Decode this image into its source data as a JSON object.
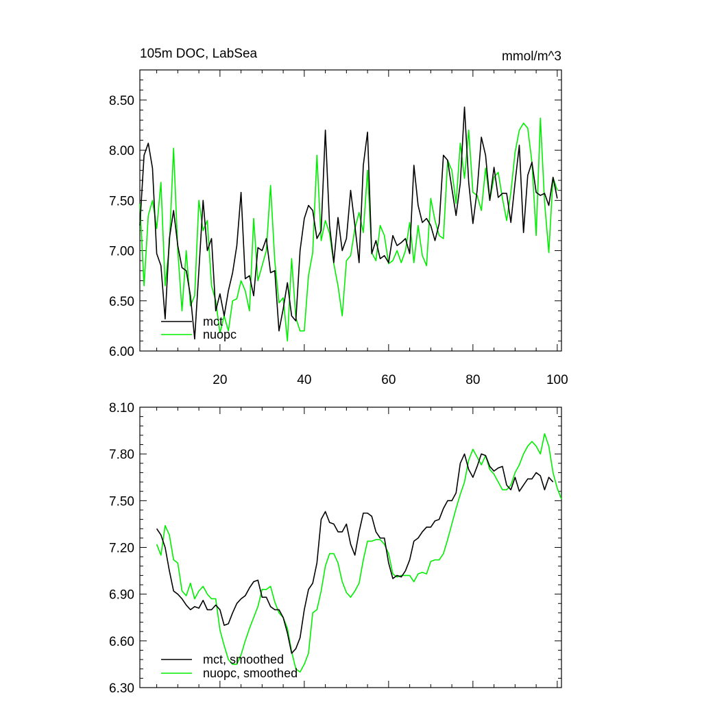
{
  "chart_data": [
    {
      "type": "line",
      "title": "105m DOC, LabSea",
      "units": "mmol/m^3",
      "xlim": [
        1,
        101
      ],
      "ylim": [
        6.0,
        8.8
      ],
      "xticks": [
        20,
        40,
        60,
        80,
        100
      ],
      "xtick_labels": [
        "20",
        "40",
        "60",
        "80",
        "100"
      ],
      "yticks": [
        6.0,
        6.5,
        7.0,
        7.5,
        8.0,
        8.5
      ],
      "ytick_labels": [
        "6.00",
        "6.50",
        "7.00",
        "7.50",
        "8.00",
        "8.50"
      ],
      "colors": {
        "mct": "#000000",
        "nuopc": "#00ee00"
      },
      "series": [
        {
          "name": "mct",
          "x_start": 1,
          "values": [
            7.25,
            7.95,
            8.07,
            7.82,
            6.97,
            6.85,
            6.32,
            7.12,
            7.4,
            7.05,
            6.83,
            6.8,
            6.55,
            6.12,
            6.8,
            7.5,
            7.0,
            7.12,
            6.4,
            6.57,
            6.35,
            6.6,
            6.78,
            7.05,
            7.58,
            6.72,
            6.75,
            6.55,
            7.03,
            7.0,
            7.12,
            6.78,
            6.8,
            6.2,
            6.42,
            6.68,
            6.35,
            6.3,
            7.0,
            7.32,
            7.45,
            7.4,
            7.12,
            7.2,
            8.2,
            7.25,
            6.88,
            7.33,
            7.0,
            7.12,
            7.6,
            7.25,
            6.88,
            7.85,
            8.18,
            6.97,
            7.1,
            6.92,
            6.95,
            6.88,
            7.15,
            7.05,
            7.08,
            7.12,
            6.97,
            7.85,
            7.45,
            7.28,
            7.32,
            7.25,
            7.1,
            7.27,
            7.95,
            7.9,
            7.62,
            7.35,
            7.67,
            8.43,
            7.68,
            7.27,
            7.6,
            8.13,
            7.95,
            7.5,
            7.83,
            7.53,
            7.57,
            7.57,
            7.28,
            7.68,
            8.05,
            7.18,
            7.75,
            7.88,
            7.58,
            7.55,
            7.57,
            7.45,
            7.73,
            7.52
          ]
        },
        {
          "name": "nuopc",
          "x_start": 1,
          "values": [
            7.47,
            6.65,
            7.35,
            7.5,
            7.22,
            7.68,
            6.65,
            7.05,
            8.02,
            7.0,
            6.4,
            7.0,
            6.45,
            6.55,
            7.5,
            7.2,
            7.3,
            6.65,
            6.5,
            6.18,
            6.35,
            6.2,
            6.5,
            6.52,
            6.7,
            6.6,
            6.4,
            7.32,
            6.7,
            6.85,
            7.0,
            7.65,
            6.9,
            6.48,
            6.53,
            6.1,
            6.92,
            6.33,
            6.2,
            6.2,
            6.75,
            6.98,
            7.95,
            7.1,
            7.3,
            7.17,
            6.87,
            6.65,
            6.35,
            6.9,
            6.95,
            7.22,
            7.38,
            7.18,
            7.8,
            6.98,
            6.9,
            7.25,
            7.15,
            6.87,
            6.9,
            7.0,
            6.88,
            7.0,
            7.28,
            6.88,
            7.25,
            6.95,
            6.85,
            7.52,
            7.3,
            7.15,
            7.12,
            7.9,
            7.8,
            7.47,
            8.07,
            7.72,
            8.2,
            7.58,
            7.55,
            7.4,
            7.82,
            7.5,
            7.73,
            7.78,
            7.52,
            7.3,
            7.58,
            7.98,
            8.2,
            8.27,
            8.22,
            7.88,
            7.15,
            8.32,
            7.48,
            6.98,
            7.73,
            7.6
          ]
        }
      ],
      "legend": {
        "placement": "bottom-left",
        "entries": [
          "mct",
          "nuopc"
        ]
      }
    },
    {
      "type": "line",
      "title": "",
      "xlim": [
        1,
        101
      ],
      "ylim": [
        6.3,
        8.1
      ],
      "xticks": [
        20,
        40,
        60,
        80,
        100
      ],
      "xtick_labels": [],
      "yticks": [
        6.3,
        6.6,
        6.9,
        7.2,
        7.5,
        7.8,
        8.1
      ],
      "ytick_labels": [
        "6.30",
        "6.60",
        "6.90",
        "7.20",
        "7.50",
        "7.80",
        "8.10"
      ],
      "colors": {
        "mct, smoothed": "#000000",
        "nuopc, smoothed": "#00ee00"
      },
      "series": [
        {
          "name": "mct, smoothed",
          "x_start": 5,
          "values": [
            7.32,
            7.28,
            7.2,
            7.05,
            6.92,
            6.9,
            6.87,
            6.83,
            6.8,
            6.82,
            6.81,
            6.86,
            6.8,
            6.8,
            6.83,
            6.8,
            6.7,
            6.71,
            6.78,
            6.84,
            6.87,
            6.89,
            6.94,
            6.98,
            6.99,
            6.88,
            6.88,
            6.82,
            6.8,
            6.8,
            6.75,
            6.65,
            6.52,
            6.55,
            6.62,
            6.8,
            6.93,
            6.97,
            7.1,
            7.38,
            7.43,
            7.36,
            7.35,
            7.3,
            7.3,
            7.35,
            7.22,
            7.15,
            7.3,
            7.42,
            7.42,
            7.4,
            7.3,
            7.26,
            7.26,
            7.1,
            7.0,
            7.02,
            7.01,
            7.05,
            7.12,
            7.24,
            7.26,
            7.3,
            7.33,
            7.33,
            7.37,
            7.38,
            7.45,
            7.5,
            7.5,
            7.55,
            7.74,
            7.8,
            7.7,
            7.65,
            7.72,
            7.8,
            7.79,
            7.72,
            7.69,
            7.71,
            7.72,
            7.6,
            7.57,
            7.65,
            7.56,
            7.6,
            7.64,
            7.64,
            7.68,
            7.66,
            7.57,
            7.65,
            7.62
          ]
        },
        {
          "name": "nuopc, smoothed",
          "x_start": 5,
          "values": [
            7.22,
            7.15,
            7.34,
            7.28,
            7.12,
            7.1,
            6.92,
            6.89,
            6.97,
            6.87,
            6.92,
            6.95,
            6.9,
            6.87,
            6.87,
            6.67,
            6.57,
            6.48,
            6.45,
            6.45,
            6.51,
            6.6,
            6.68,
            6.75,
            6.82,
            6.93,
            6.93,
            6.95,
            6.85,
            6.78,
            6.75,
            6.68,
            6.53,
            6.42,
            6.4,
            6.45,
            6.52,
            6.78,
            6.8,
            6.92,
            7.08,
            7.16,
            7.16,
            7.1,
            6.98,
            6.91,
            6.88,
            6.92,
            6.97,
            7.12,
            7.24,
            7.24,
            7.25,
            7.25,
            7.22,
            7.16,
            7.03,
            7.01,
            7.02,
            7.02,
            7.02,
            6.98,
            7.03,
            7.04,
            7.03,
            7.11,
            7.12,
            7.12,
            7.16,
            7.25,
            7.35,
            7.45,
            7.54,
            7.62,
            7.76,
            7.83,
            7.78,
            7.73,
            7.79,
            7.7,
            7.67,
            7.62,
            7.57,
            7.57,
            7.6,
            7.68,
            7.73,
            7.8,
            7.85,
            7.88,
            7.85,
            7.8,
            7.93,
            7.85,
            7.68,
            7.58,
            7.51
          ]
        }
      ],
      "legend": {
        "placement": "bottom-left",
        "entries": [
          "mct, smoothed",
          "nuopc, smoothed"
        ]
      }
    }
  ]
}
